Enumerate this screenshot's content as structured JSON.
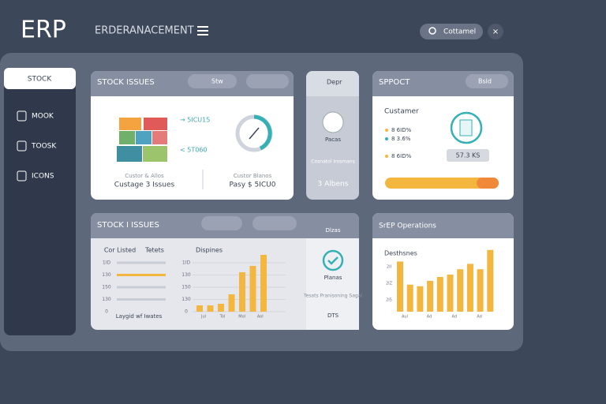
{
  "header": {
    "logo": "ERP",
    "title": "ERDERANACEMENT",
    "search": "Cottamel"
  },
  "sidebar": {
    "tab": "STOCK",
    "items": [
      "MOOK",
      "TOOSK",
      "ICONS"
    ]
  },
  "issues_card": {
    "title": "STOCK ISSUES",
    "button": "Stw",
    "arrow_top": "→ 5ICU15",
    "arrow_bottom": "< 5T060",
    "left_caption": "Custor & Allos",
    "left_label": "Custage 3 Issues",
    "right_caption": "Custor Blanos",
    "right_label": "Pasy $ 5ICU0"
  },
  "depr_card": {
    "title": "Depr",
    "label": "Pacas",
    "caption": "Cosnatol Irosmans",
    "value": "3 Albens"
  },
  "report_card": {
    "title": "SPPOCT",
    "button": "Bsld",
    "heading": "Custamer",
    "rows": [
      "8 6ID%",
      "8 3.6%",
      "8 6ID%"
    ],
    "badge": "57.3 KS"
  },
  "stock_card": {
    "title": "STOCK I ISSUES",
    "side_title": "Dlzas",
    "columns": [
      "Cor Listed",
      "Tetets",
      "Dispines"
    ],
    "row_labels": [
      "1ID",
      "130",
      "150",
      "130",
      "0"
    ],
    "caption": "Laygid wf Iwates",
    "side_label": "Planas",
    "side_caption": "Tesats Pranisoning Sagal",
    "side_value": "DTS",
    "chart": {
      "ylim": [
        0,
        80
      ],
      "values": [
        8,
        8,
        10,
        22,
        50,
        58,
        72
      ],
      "x_labels": [
        "Jul",
        "Tol",
        "Mol",
        "Aol"
      ]
    }
  },
  "ops_card": {
    "title": "SrEP Operations",
    "heading": "Desthsnes",
    "y_labels": [
      "2II",
      "2IZ",
      "2I5"
    ],
    "chart": {
      "ylim": [
        0,
        90
      ],
      "values": [
        65,
        35,
        33,
        40,
        45,
        48,
        55,
        62,
        55,
        80
      ],
      "x_labels": [
        "Aul",
        "Ad",
        "Ad",
        "Ad"
      ]
    }
  }
}
